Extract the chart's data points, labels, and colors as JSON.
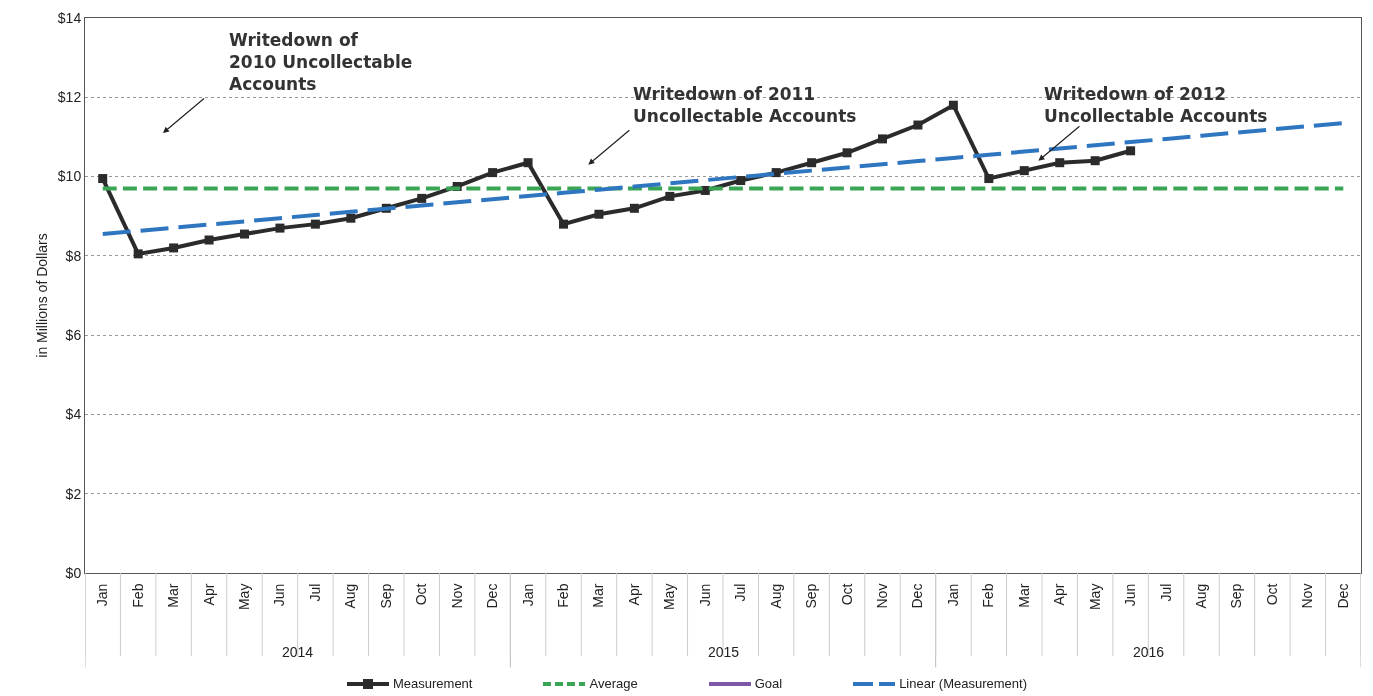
{
  "chart_data": {
    "type": "line",
    "ylabel": "in Millions of Dollars",
    "categories": [
      "Jan",
      "Feb",
      "Mar",
      "Apr",
      "May",
      "Jun",
      "Jul",
      "Aug",
      "Sep",
      "Oct",
      "Nov",
      "Dec",
      "Jan",
      "Feb",
      "Mar",
      "Apr",
      "May",
      "Jun",
      "Jul",
      "Aug",
      "Sep",
      "Oct",
      "Nov",
      "Dec",
      "Jan",
      "Feb",
      "Mar",
      "Apr",
      "May",
      "Jun",
      "Jul",
      "Aug",
      "Sep",
      "Oct",
      "Nov",
      "Dec"
    ],
    "series": [
      {
        "name": "Measurement",
        "color": "#2b2b2b",
        "marker": "square",
        "line_style": "solid",
        "values": [
          9.95,
          8.05,
          8.2,
          8.4,
          8.55,
          8.7,
          8.8,
          8.95,
          9.2,
          9.45,
          9.75,
          10.1,
          10.35,
          8.8,
          9.05,
          9.2,
          9.5,
          9.65,
          9.9,
          10.1,
          10.35,
          10.6,
          10.95,
          11.3,
          11.8,
          9.95,
          10.15,
          10.35,
          10.4,
          10.65,
          null,
          null,
          null,
          null,
          null,
          null
        ]
      },
      {
        "name": "Average",
        "color": "#3aa655",
        "marker": "none",
        "line_style": "dashed",
        "values": [
          9.7,
          9.7,
          9.7,
          9.7,
          9.7,
          9.7,
          9.7,
          9.7,
          9.7,
          9.7,
          9.7,
          9.7,
          9.7,
          9.7,
          9.7,
          9.7,
          9.7,
          9.7,
          9.7,
          9.7,
          9.7,
          9.7,
          9.7,
          9.7,
          9.7,
          9.7,
          9.7,
          9.7,
          9.7,
          9.7,
          9.7,
          9.7,
          9.7,
          9.7,
          9.7,
          9.7
        ]
      },
      {
        "name": "Goal",
        "color": "#7e57a6",
        "marker": "none",
        "line_style": "solid",
        "values": [
          null,
          null,
          null,
          null,
          null,
          null,
          null,
          null,
          null,
          null,
          null,
          null,
          null,
          null,
          null,
          null,
          null,
          null,
          null,
          null,
          null,
          null,
          null,
          null,
          null,
          null,
          null,
          null,
          null,
          null,
          null,
          null,
          null,
          null,
          null,
          null
        ]
      },
      {
        "name": "Linear (Measurement)",
        "color": "#2f76c0",
        "marker": "none",
        "line_style": "longdash",
        "values": [
          8.55,
          8.63,
          8.71,
          8.79,
          8.87,
          8.95,
          9.03,
          9.11,
          9.19,
          9.27,
          9.35,
          9.43,
          9.51,
          9.59,
          9.67,
          9.75,
          9.83,
          9.91,
          9.99,
          10.07,
          10.15,
          10.23,
          10.31,
          10.39,
          10.47,
          10.55,
          10.63,
          10.71,
          10.79,
          10.87,
          10.95,
          11.03,
          11.11,
          11.19,
          11.27,
          11.35
        ]
      }
    ],
    "ylim": [
      0,
      14
    ],
    "yticks": [
      {
        "value": 0,
        "label": "$0"
      },
      {
        "value": 2,
        "label": "$2"
      },
      {
        "value": 4,
        "label": "$4"
      },
      {
        "value": 6,
        "label": "$6"
      },
      {
        "value": 8,
        "label": "$8"
      },
      {
        "value": 10,
        "label": "$10"
      },
      {
        "value": 12,
        "label": "$12"
      },
      {
        "value": 14,
        "label": "$14"
      }
    ],
    "grid": "y",
    "legend": "bottom",
    "annotations": [
      "Writedown of\n2010 Uncollectable\nAccounts",
      "Writedown of 2011\nUncollectable Accounts",
      "Writedown of 2012\nUncollectable Accounts",
      "2014",
      "2015",
      "2016"
    ]
  }
}
